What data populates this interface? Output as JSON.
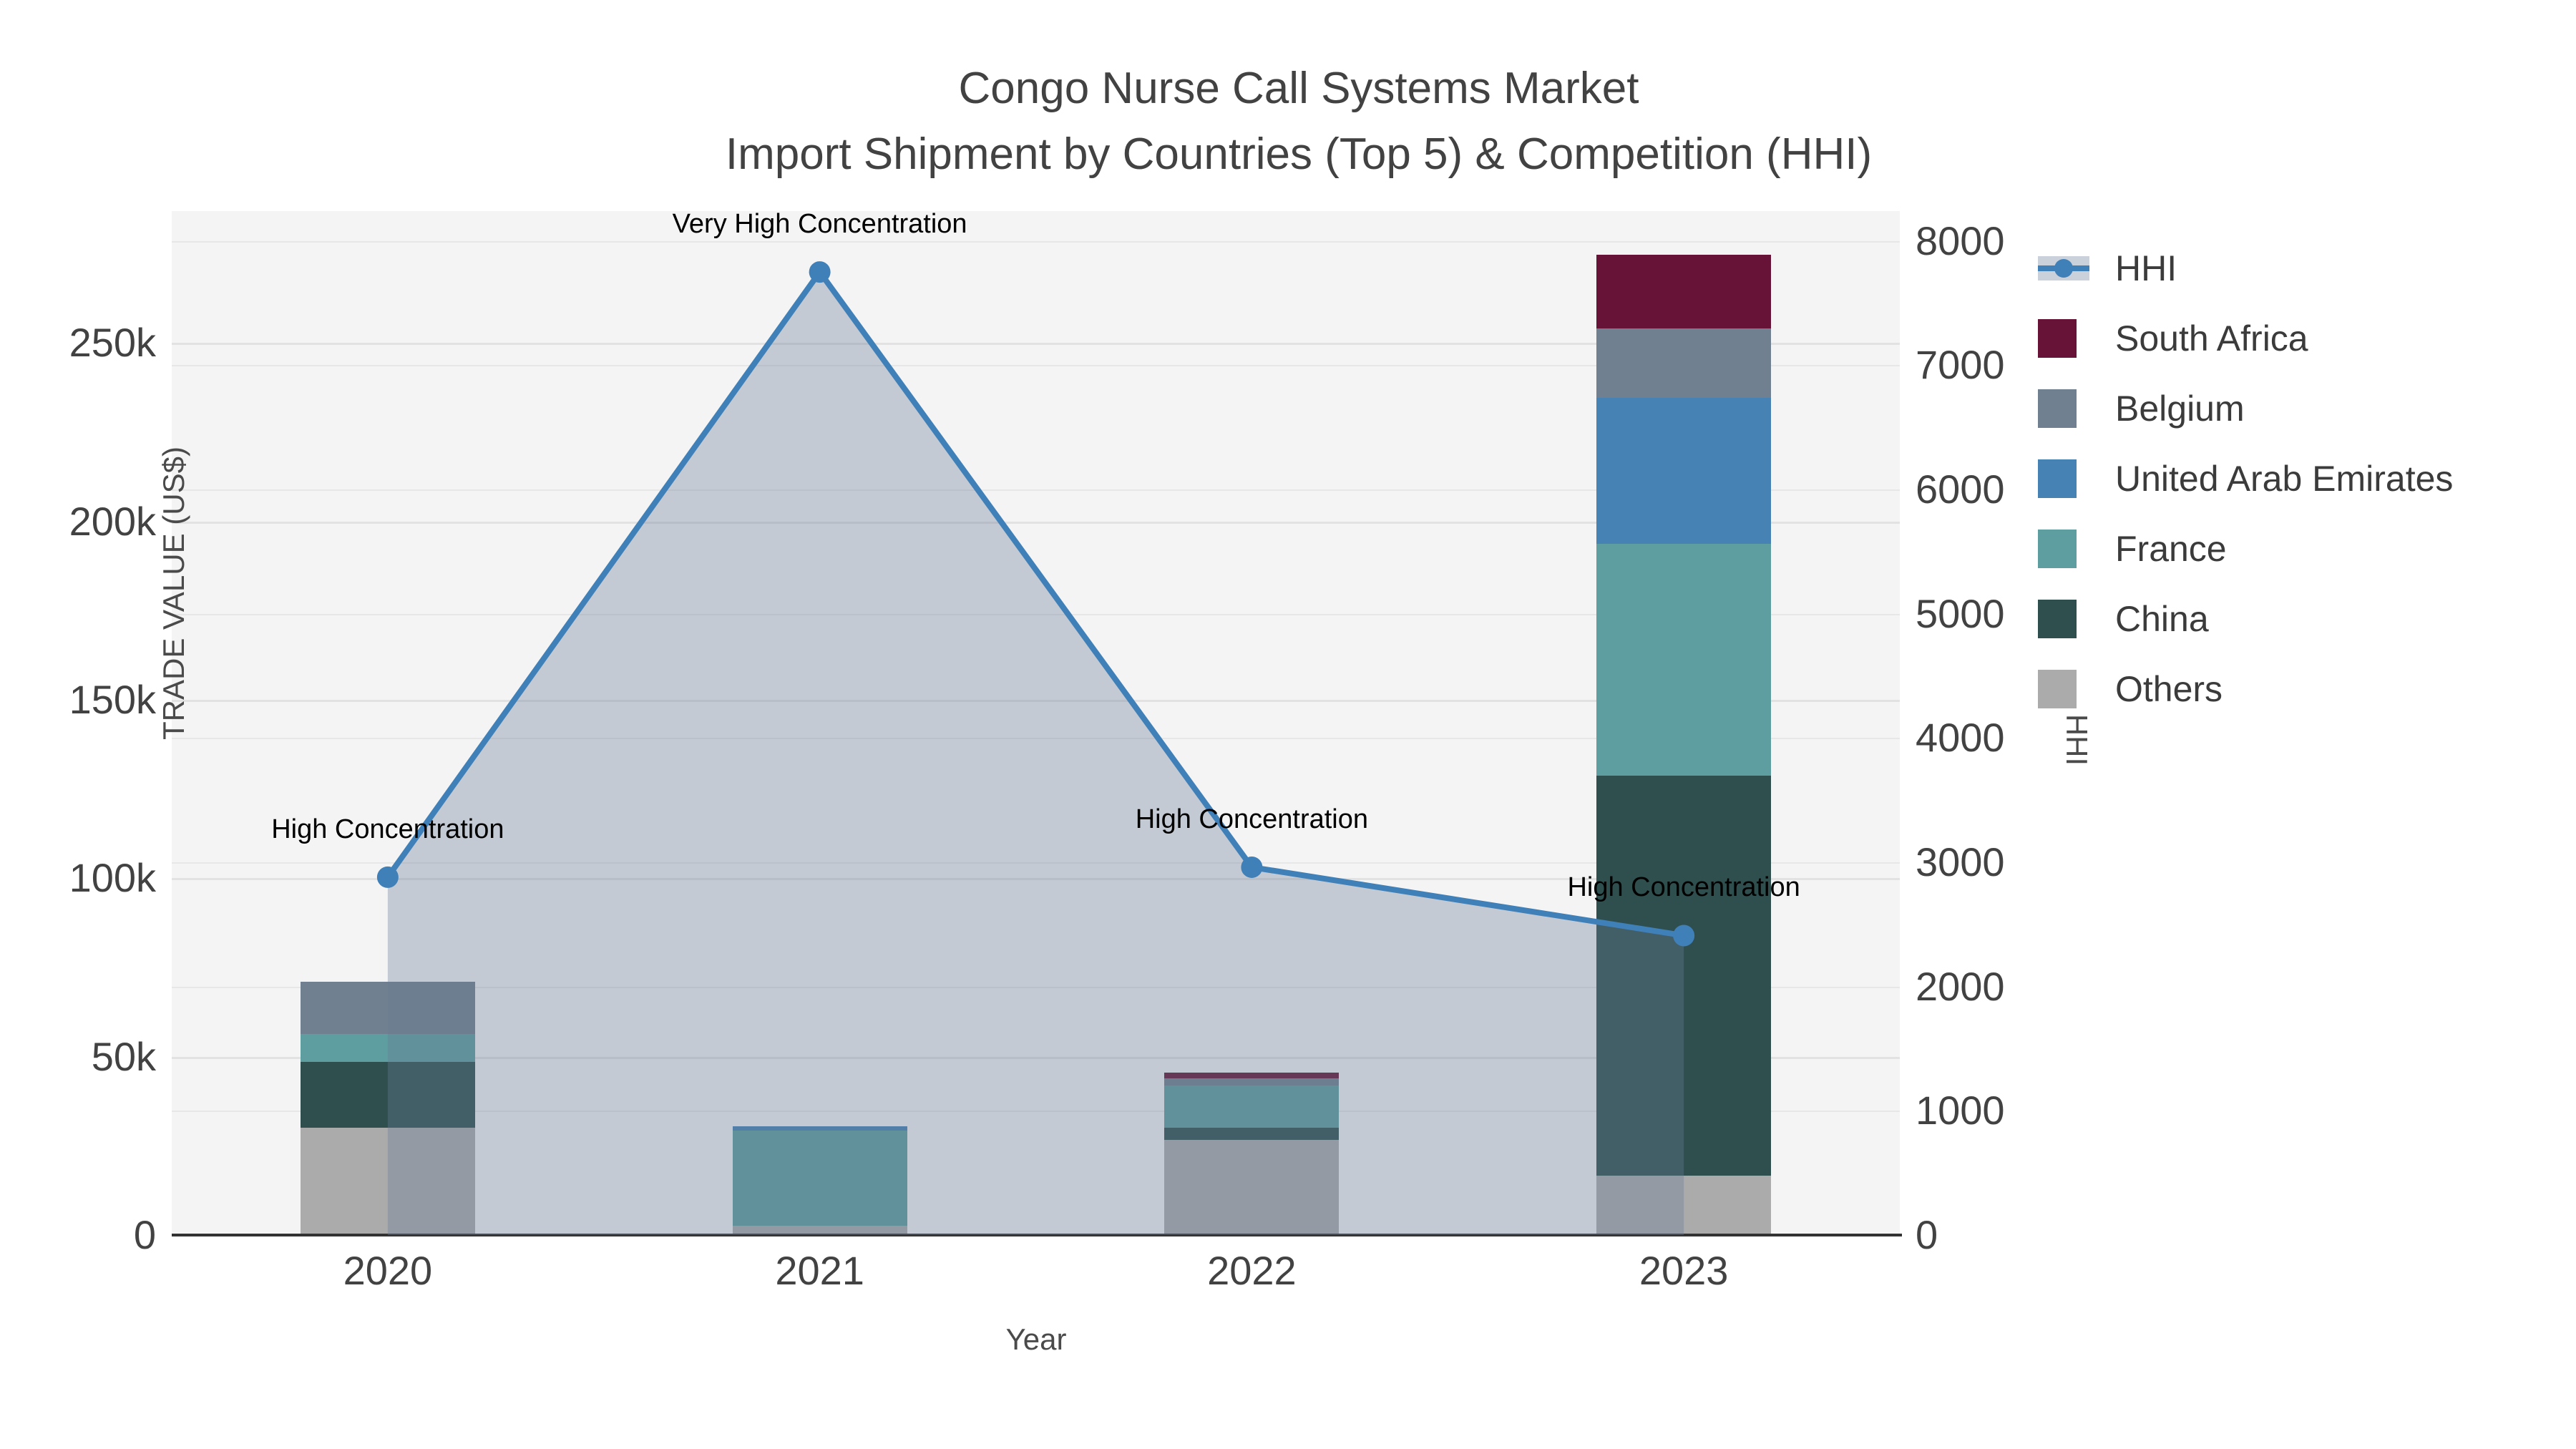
{
  "title": {
    "line1": "Congo Nurse Call Systems Market",
    "line2": "Import Shipment by Countries (Top 5) & Competition (HHI)"
  },
  "axes": {
    "x": {
      "title": "Year",
      "categories": [
        "2020",
        "2021",
        "2022",
        "2023"
      ]
    },
    "y_left": {
      "title": "TRADE VALUE (US$)",
      "tick_labels": [
        "0",
        "50k",
        "100k",
        "150k",
        "200k",
        "250k"
      ],
      "tick_values": [
        0,
        50000,
        100000,
        150000,
        200000,
        250000
      ],
      "max": 287000
    },
    "y_right": {
      "title": "HHI",
      "tick_labels": [
        "0",
        "1000",
        "2000",
        "3000",
        "4000",
        "5000",
        "6000",
        "7000",
        "8000"
      ],
      "tick_values": [
        0,
        1000,
        2000,
        3000,
        4000,
        5000,
        6000,
        7000,
        8000
      ],
      "max": 8240
    }
  },
  "legend": [
    {
      "label": "HHI",
      "type": "line",
      "color": "#4080b8"
    },
    {
      "label": "South Africa",
      "type": "square",
      "color": "#671337"
    },
    {
      "label": "Belgium",
      "type": "square",
      "color": "#708090"
    },
    {
      "label": "United Arab Emirates",
      "type": "square",
      "color": "#4682b4"
    },
    {
      "label": "France",
      "type": "square",
      "color": "#5f9ea0"
    },
    {
      "label": "China",
      "type": "square",
      "color": "#2f4f4f"
    },
    {
      "label": "Others",
      "type": "square",
      "color": "#ababab"
    }
  ],
  "chart_data": {
    "type": "bar",
    "subtype": "stacked-bars-with-line-area-dual-axis",
    "title": "Congo Nurse Call Systems Market — Import Shipment by Countries (Top 5) & Competition (HHI)",
    "xlabel": "Year",
    "ylabel_left": "TRADE VALUE (US$)",
    "ylabel_right": "HHI",
    "ylim_left": [
      0,
      287000
    ],
    "ylim_right": [
      0,
      8240
    ],
    "grid": true,
    "legend_position": "right",
    "categories": [
      "2020",
      "2021",
      "2022",
      "2023"
    ],
    "series": [
      {
        "name": "South Africa",
        "type": "bar",
        "color": "#671337",
        "values": [
          0,
          0,
          1600,
          20500
        ]
      },
      {
        "name": "Belgium",
        "type": "bar",
        "color": "#708090",
        "values": [
          14600,
          0,
          2000,
          19500
        ]
      },
      {
        "name": "United Arab Emirates",
        "type": "bar",
        "color": "#4682b4",
        "values": [
          0,
          1200,
          0,
          41000
        ]
      },
      {
        "name": "France",
        "type": "bar",
        "color": "#5f9ea0",
        "values": [
          7800,
          26700,
          11900,
          65000
        ]
      },
      {
        "name": "China",
        "type": "bar",
        "color": "#2f4f4f",
        "values": [
          18500,
          0,
          3400,
          112000
        ]
      },
      {
        "name": "Others",
        "type": "bar",
        "color": "#ababab",
        "values": [
          30000,
          2600,
          26700,
          16700
        ]
      }
    ],
    "stack_order_bottom_to_top": [
      "Others",
      "China",
      "France",
      "United Arab Emirates",
      "Belgium",
      "South Africa"
    ],
    "bar_totals": [
      70900,
      30500,
      45600,
      274700
    ],
    "hhi_line": {
      "name": "HHI",
      "type": "line+markers+area",
      "axis": "right",
      "color": "#4080b8",
      "area_fill": "rgba(104,124,150,0.35)",
      "values": [
        2880,
        7750,
        2960,
        2410
      ]
    },
    "annotations": [
      {
        "category": "2020",
        "text": "High Concentration"
      },
      {
        "category": "2021",
        "text": "Very High Concentration"
      },
      {
        "category": "2022",
        "text": "High Concentration"
      },
      {
        "category": "2023",
        "text": "High Concentration"
      }
    ]
  }
}
